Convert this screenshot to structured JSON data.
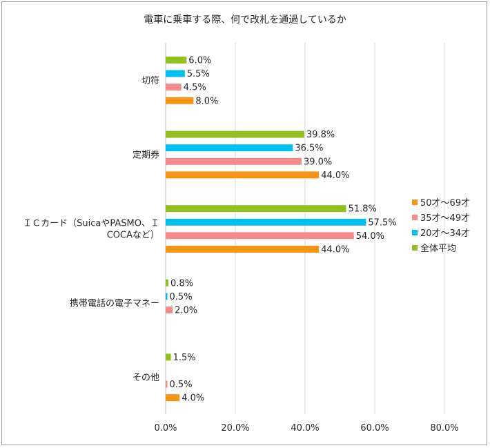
{
  "chart_data": {
    "type": "bar",
    "orientation": "horizontal",
    "title": "電車に乗車する際、何で改札を通過しているか",
    "categories": [
      [
        "切符"
      ],
      [
        "定期券"
      ],
      [
        "ＩＣカード（SuicaやPASMO、Ｉ",
        "COCAなど）"
      ],
      [
        "携帯電話の電子マネー"
      ],
      [
        "その他"
      ]
    ],
    "series": [
      {
        "name": "全体平均",
        "color": "#92c01f",
        "values": [
          6.0,
          39.8,
          51.8,
          0.8,
          1.5
        ]
      },
      {
        "name": "20才～34才",
        "color": "#00c0f0",
        "values": [
          5.5,
          36.5,
          57.5,
          0.5,
          0.0
        ]
      },
      {
        "name": "35才～49才",
        "color": "#f48a8a",
        "values": [
          4.5,
          39.0,
          54.0,
          2.0,
          0.5
        ]
      },
      {
        "name": "50才～69才",
        "color": "#f79414",
        "values": [
          8.0,
          44.0,
          44.0,
          0.0,
          4.0
        ]
      }
    ],
    "data_labels": [
      [
        "6.0%",
        "5.5%",
        "4.5%",
        "8.0%"
      ],
      [
        "39.8%",
        "36.5%",
        "39.0%",
        "44.0%"
      ],
      [
        "51.8%",
        "57.5%",
        "54.0%",
        "44.0%"
      ],
      [
        "0.8%",
        "0.5%",
        "2.0%",
        ""
      ],
      [
        "1.5%",
        "",
        "0.5%",
        "4.0%"
      ]
    ],
    "xlim": [
      0,
      80
    ],
    "xticks": [
      0,
      20,
      40,
      60,
      80
    ],
    "xtick_labels": [
      "0.0%",
      "20.0%",
      "40.0%",
      "60.0%",
      "80.0%"
    ],
    "legend_order": [
      "50才～69才",
      "35才～49才",
      "20才～34才",
      "全体平均"
    ],
    "legend_position": "right",
    "grid": "vertical",
    "gridline_color": "#d9d9d9"
  }
}
